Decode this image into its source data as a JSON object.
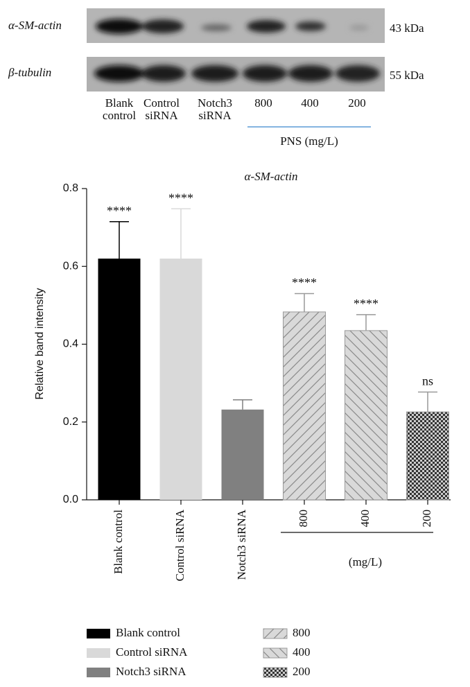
{
  "blot": {
    "rows": [
      {
        "label": "α-SM-actin",
        "size": "43 kDa"
      },
      {
        "label": "β-tubulin",
        "size": "55 kDa"
      }
    ],
    "lanes": [
      [
        "Blank",
        "control"
      ],
      [
        "Control",
        "siRNA"
      ],
      [
        "Notch3",
        "siRNA"
      ],
      [
        "800"
      ],
      [
        "400"
      ],
      [
        "200"
      ]
    ],
    "group_label": "PNS (mg/L)"
  },
  "chart_data": {
    "type": "bar",
    "title": "α-SM-actin",
    "y_label": "Relative band intensity",
    "categories": [
      "Blank control",
      "Control siRNA",
      "Notch3 siRNA",
      "800",
      "400",
      "200"
    ],
    "values": [
      0.62,
      0.62,
      0.232,
      0.483,
      0.435,
      0.226
    ],
    "errors": [
      0.095,
      0.128,
      0.025,
      0.047,
      0.041,
      0.051
    ],
    "significance": [
      "****",
      "****",
      null,
      "****",
      "****",
      "ns"
    ],
    "colors": [
      "#000000",
      "#d9d9d9",
      "#808080",
      "#d9d9d9",
      "#d9d9d9",
      "#555555"
    ],
    "patterns": [
      "solid",
      "solid",
      "solid",
      "diagonal-up",
      "diagonal-down",
      "checker"
    ],
    "group_label": "(mg/L)",
    "ylim": [
      0,
      0.8
    ],
    "yticks": [
      {
        "value": 0,
        "label": "0.0"
      },
      0.2,
      0.4,
      0.6,
      0.8
    ]
  }
}
